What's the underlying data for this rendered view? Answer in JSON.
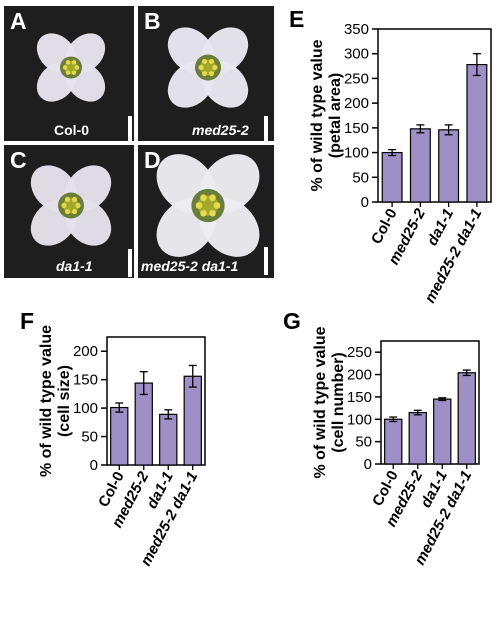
{
  "photos": [
    {
      "letter": "A",
      "label": "Col-0",
      "italic": false,
      "scale": 0.85,
      "petal": "#e6e3ec"
    },
    {
      "letter": "B",
      "label": "med25-2",
      "italic": true,
      "scale": 1.0,
      "petal": "#e8e6ee"
    },
    {
      "letter": "C",
      "label": "da1-1",
      "italic": true,
      "scale": 1.0,
      "petal": "#e4e1ea"
    },
    {
      "letter": "D",
      "label": "med25-2 da1-1",
      "italic": true,
      "scale": 1.28,
      "petal": "#ecebf1"
    }
  ],
  "colors": {
    "bar": "#9e8fc6",
    "photo_bg": "#1e1e1e",
    "center": "#a4a82a"
  },
  "chart_data": [
    {
      "panel": "E",
      "type": "bar",
      "categories": [
        "Col-0",
        "med25-2",
        "da1-1",
        "med25-2 da1-1"
      ],
      "category_italic": [
        false,
        true,
        true,
        true
      ],
      "values": [
        100,
        148,
        146,
        278
      ],
      "errors": [
        6,
        8,
        10,
        22
      ],
      "ylabel_line1": "% of wild type value",
      "ylabel_line2": "(petal area)",
      "ylim": [
        0,
        350
      ],
      "yticks": [
        0,
        50,
        100,
        150,
        200,
        250,
        300,
        350
      ]
    },
    {
      "panel": "F",
      "type": "bar",
      "categories": [
        "Col-0",
        "med25-2",
        "da1-1",
        "med25-2 da1-1"
      ],
      "category_italic": [
        false,
        true,
        true,
        true
      ],
      "values": [
        101,
        144,
        89,
        156
      ],
      "errors": [
        8,
        20,
        8,
        19
      ],
      "ylabel_line1": "% of wild type value",
      "ylabel_line2": "(cell size)",
      "ylim": [
        0,
        225
      ],
      "yticks": [
        0,
        50,
        100,
        150,
        200
      ]
    },
    {
      "panel": "G",
      "type": "bar",
      "categories": [
        "Col-0",
        "med25-2",
        "da1-1",
        "med25-2 da1-1"
      ],
      "category_italic": [
        false,
        true,
        true,
        true
      ],
      "values": [
        100,
        115,
        145,
        204
      ],
      "errors": [
        5,
        5,
        3,
        6
      ],
      "ylabel_line1": "% of wild type value",
      "ylabel_line2": "(cell number)",
      "ylim": [
        0,
        275
      ],
      "yticks": [
        0,
        50,
        100,
        150,
        200,
        250
      ]
    }
  ]
}
